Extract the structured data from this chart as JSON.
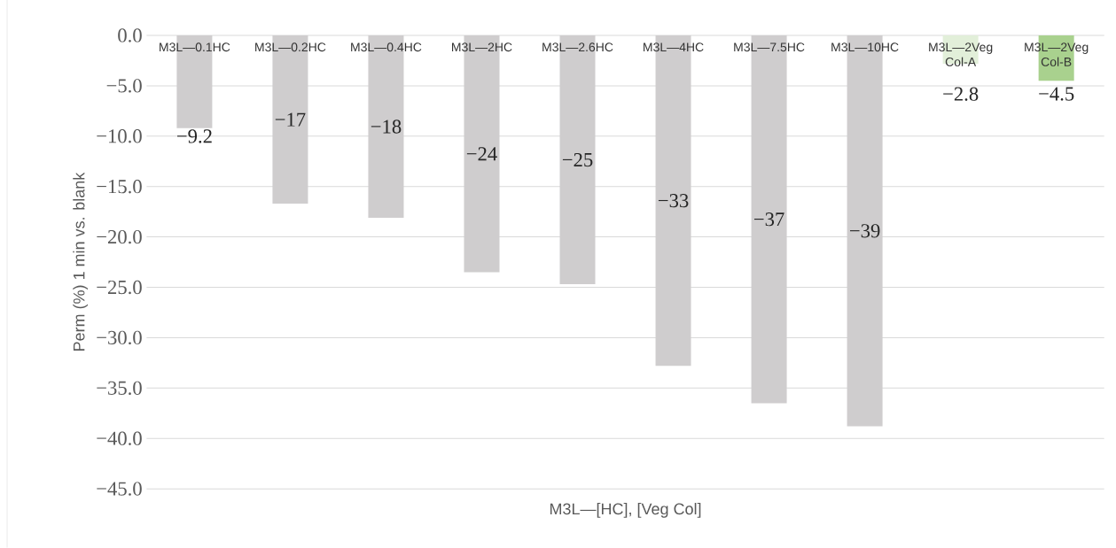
{
  "chart_data": {
    "type": "bar",
    "xlabel": "M3L—[HC], [Veg Col]",
    "ylabel": "Perm (%) 1 min vs. blank",
    "categories": [
      "M3L—0.1HC",
      "M3L—0.2HC",
      "M3L—0.4HC",
      "M3L—2HC",
      "M3L—2.6HC",
      "M3L—4HC",
      "M3L—7.5HC",
      "M3L—10HC",
      "M3L—2Veg Col-A",
      "M3L—2Veg Col-B"
    ],
    "values": [
      -9.2,
      -16.7,
      -18.1,
      -23.5,
      -24.7,
      -32.8,
      -36.5,
      -38.8,
      -2.8,
      -4.5
    ],
    "value_labels": [
      "−9.2",
      "−17",
      "−18",
      "−24",
      "−25",
      "−33",
      "−37",
      "−39",
      "−2.8",
      "−4.5"
    ],
    "colors": [
      "#cfcdce",
      "#cfcdce",
      "#cfcdce",
      "#cfcdce",
      "#cfcdce",
      "#cfcdce",
      "#cfcdce",
      "#cfcdce",
      "#e2efd9",
      "#a9d18e"
    ],
    "ylim": [
      -45,
      0
    ],
    "yticks": [
      {
        "value": 0,
        "label": "0.0"
      },
      {
        "value": -5,
        "label": "−5.0"
      },
      {
        "value": -10,
        "label": "−10.0"
      },
      {
        "value": -15,
        "label": "−15.0"
      },
      {
        "value": -20,
        "label": "−20.0"
      },
      {
        "value": -25,
        "label": "−25.0"
      },
      {
        "value": -30,
        "label": "−30.0"
      },
      {
        "value": -35,
        "label": "−35.0"
      },
      {
        "value": -40,
        "label": "−40.0"
      },
      {
        "value": -45,
        "label": "−45.0"
      }
    ],
    "grid": "y"
  }
}
